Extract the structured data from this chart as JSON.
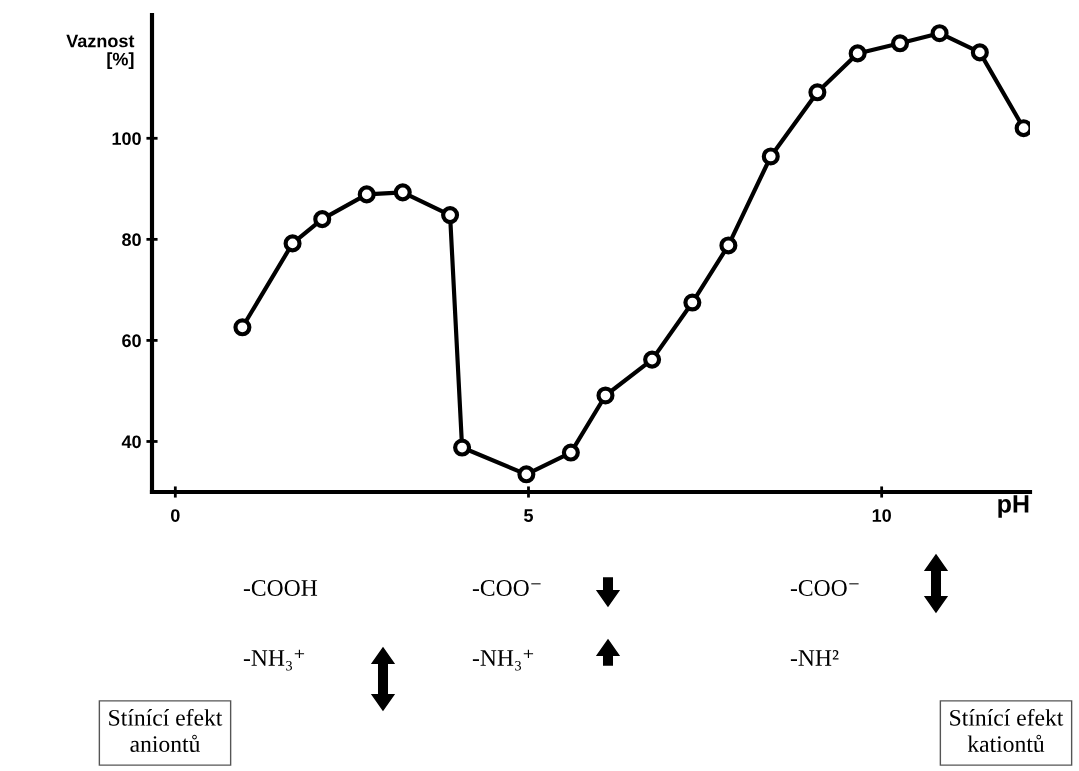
{
  "chart_data": {
    "type": "line",
    "xlabel": "pH",
    "ylabel": "Vaznost\n[%]",
    "x": [
      0.95,
      1.66,
      2.08,
      2.71,
      3.22,
      3.89,
      4.06,
      4.97,
      5.6,
      6.09,
      6.75,
      7.32,
      7.83,
      8.43,
      9.09,
      9.66,
      10.26,
      10.82,
      11.39,
      12.01
    ],
    "series": [
      {
        "color": "#000000",
        "values": [
          62.6,
          79.2,
          84.0,
          88.9,
          89.3,
          84.8,
          38.8,
          33.5,
          37.8,
          49.1,
          56.2,
          67.5,
          78.8,
          96.4,
          109.1,
          116.8,
          118.8,
          120.8,
          117.0,
          102.0
        ]
      }
    ],
    "xlim": [
      -0.33,
      12.1
    ],
    "ylim": [
      30,
      124.4
    ],
    "xticks": [
      0,
      5,
      10
    ],
    "yticks": [
      40,
      60,
      80,
      100
    ],
    "marker": "circle",
    "line_style": "solid",
    "grid": false,
    "legend": false,
    "annotations": [
      "-COOH",
      "-COO⁻",
      "-COO⁻",
      "-NH₃⁺",
      "-NH₃⁺",
      "-NH²",
      "Stínící efekt\naniontů",
      "Stínící efekt\nkationtů"
    ]
  }
}
